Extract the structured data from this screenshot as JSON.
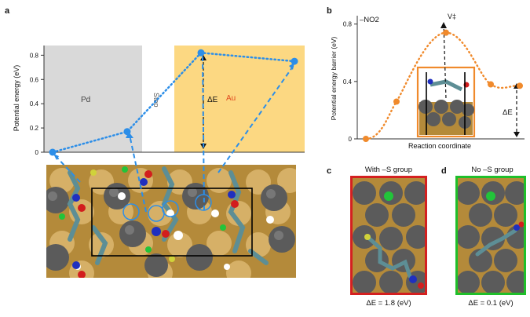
{
  "panels": {
    "a": {
      "letter": "a",
      "ylabel": "Potential energy (eV)",
      "yticks": [
        "0",
        "0.2",
        "0.4",
        "0.6",
        "0.8"
      ],
      "region_pd": "Pd",
      "region_step": "Step",
      "region_au": "Au",
      "delta_e_label": "ΔE"
    },
    "b": {
      "letter": "b",
      "subtitle": "–NO2",
      "ylabel": "Potential energy barrier (eV)",
      "xlabel": "Reaction coordinate",
      "yticks": [
        "0",
        "0.4",
        "0.8"
      ],
      "ts_label": "V‡",
      "delta_e_label": "ΔE"
    },
    "c": {
      "letter": "c",
      "title": "With –S group",
      "caption": "ΔE = 1.8 (eV)"
    },
    "d": {
      "letter": "d",
      "title": "No –S group",
      "caption": "ΔE = 0.1 (eV)"
    }
  },
  "colors": {
    "pd_region": "#d9d9d9",
    "au_region": "#fcd882",
    "blue_path": "#2c8ee8",
    "orange_curve": "#f08a2c",
    "panel_c_border": "#d42020",
    "panel_d_border": "#1fbf2a",
    "panel_b_inset_border": "#f08a2c"
  },
  "chart_data": [
    {
      "type": "line",
      "panel": "a",
      "ylabel": "Potential energy (eV)",
      "ylim": [
        0,
        0.88
      ],
      "x": [
        0,
        1,
        2,
        3
      ],
      "values": [
        0.0,
        0.17,
        0.82,
        0.75
      ]
    },
    {
      "type": "line",
      "panel": "b",
      "title": "–NO2",
      "xlabel": "Reaction coordinate",
      "ylabel": "Potential energy barrier (eV)",
      "ylim": [
        0,
        0.82
      ],
      "x": [
        0,
        1,
        2,
        3,
        4
      ],
      "values": [
        0.0,
        0.26,
        0.74,
        0.38,
        0.37
      ]
    }
  ]
}
